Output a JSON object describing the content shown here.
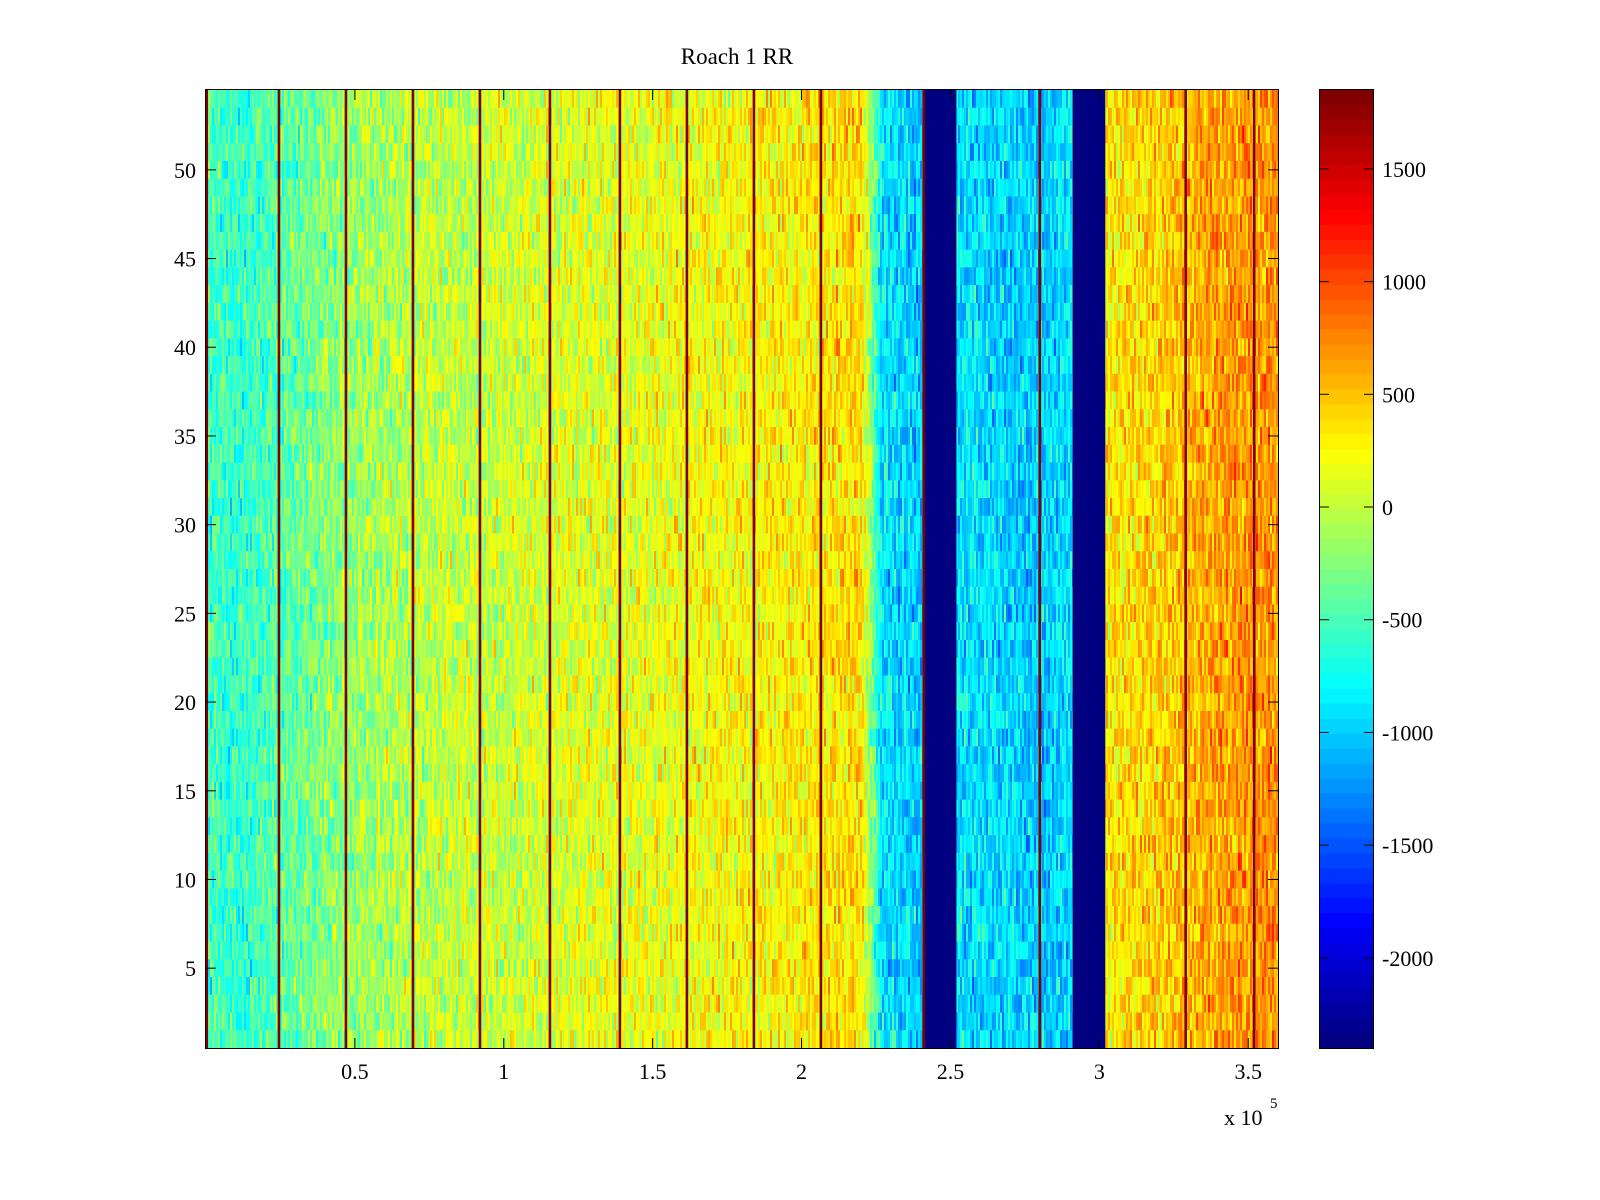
{
  "chart_data": {
    "type": "heatmap",
    "title": "Roach 1 RR",
    "xlabel": "",
    "ylabel": "",
    "x_exponent_base": "x 10",
    "x_exponent_power": "5",
    "xlim": [
      0,
      3.6
    ],
    "ylim": [
      0.5,
      54.5
    ],
    "x_ticks": [
      0.5,
      1,
      1.5,
      2,
      2.5,
      3,
      3.5
    ],
    "x_tick_labels": [
      "0.5",
      "1",
      "1.5",
      "2",
      "2.5",
      "3",
      "3.5"
    ],
    "y_ticks": [
      5,
      10,
      15,
      20,
      25,
      30,
      35,
      40,
      45,
      50
    ],
    "y_tick_labels": [
      "5",
      "10",
      "15",
      "20",
      "25",
      "30",
      "35",
      "40",
      "45",
      "50"
    ],
    "colorbar": {
      "colormap": "jet",
      "clim": [
        -2400,
        1850
      ],
      "ticks": [
        -2000,
        -1500,
        -1000,
        -500,
        0,
        500,
        1000,
        1500
      ],
      "tick_labels": [
        "-2000",
        "-1500",
        "-1000",
        "-500",
        "0",
        "500",
        "1000",
        "1500"
      ]
    },
    "rows": 54,
    "baseline_profile_x": [
      0,
      0.1,
      0.2,
      0.4,
      0.6,
      0.8,
      1.0,
      1.2,
      1.4,
      1.6,
      1.8,
      2.0,
      2.2,
      2.27,
      2.4,
      2.52,
      2.8,
      2.9,
      3.02,
      3.2,
      3.4,
      3.6
    ],
    "baseline_profile_value": [
      -500,
      -600,
      -500,
      -250,
      -100,
      0,
      50,
      100,
      150,
      200,
      250,
      300,
      400,
      -900,
      -1000,
      -900,
      -1000,
      -900,
      300,
      450,
      650,
      700
    ],
    "saturated_bands": [
      {
        "x_start": 2.41,
        "x_end": 2.52,
        "value": -2400
      },
      {
        "x_start": 2.91,
        "x_end": 3.02,
        "value": -2400
      }
    ],
    "spike_lines_x": [
      0.0025,
      0.245,
      0.47,
      0.695,
      0.92,
      1.155,
      1.39,
      1.615,
      1.84,
      2.065,
      2.41,
      2.8,
      3.29,
      3.52
    ],
    "spike_value": 1850
  }
}
